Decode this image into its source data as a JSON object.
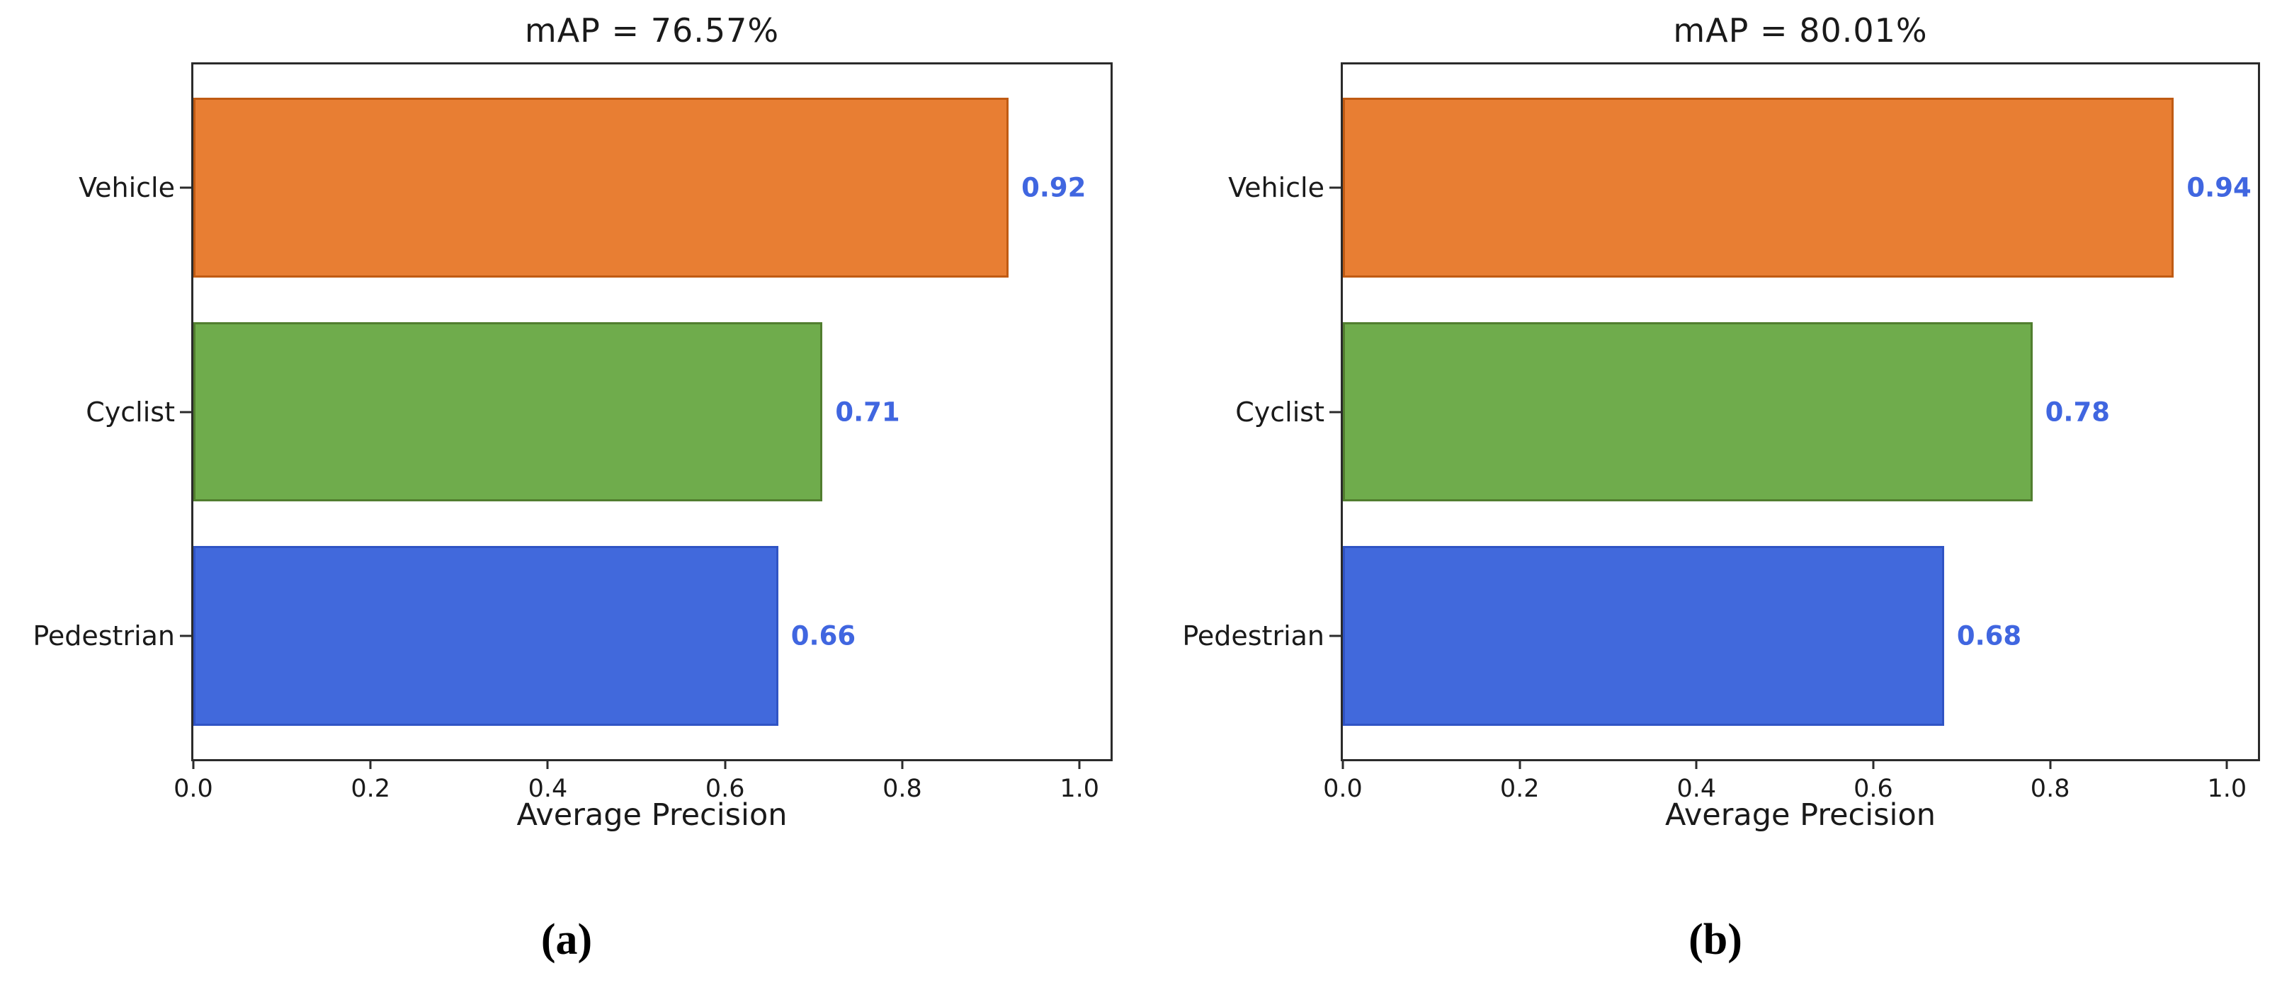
{
  "page": {
    "background": "#ffffff",
    "axis_color": "#2b2b2b"
  },
  "chart_data": [
    {
      "type": "bar",
      "orientation": "horizontal",
      "title": "mAP = 76.57%",
      "xlabel": "Average Precision",
      "categories": [
        "Vehicle",
        "Cyclist",
        "Pedestrian"
      ],
      "values": [
        0.92,
        0.71,
        0.66
      ],
      "value_labels": [
        "0.92",
        "0.71",
        "0.66"
      ],
      "xlim": [
        0,
        1.035
      ],
      "ylim_span": 3.1,
      "bar_height_frac": 0.8,
      "grid": false,
      "legend": "none",
      "x_ticks": [
        0.0,
        0.2,
        0.4,
        0.6,
        0.8,
        1.0
      ],
      "x_tick_labels": [
        "0.0",
        "0.2",
        "0.4",
        "0.6",
        "0.8",
        "1.0"
      ],
      "bar_colors": [
        "#E87E33",
        "#6FAC4C",
        "#4169DC"
      ],
      "bar_edge_colors": [
        "#C05B13",
        "#517E2F",
        "#3054C4"
      ],
      "value_label_color": "#4066E0",
      "caption": "(a)"
    },
    {
      "type": "bar",
      "orientation": "horizontal",
      "title": "mAP = 80.01%",
      "xlabel": "Average Precision",
      "categories": [
        "Vehicle",
        "Cyclist",
        "Pedestrian"
      ],
      "values": [
        0.94,
        0.78,
        0.68
      ],
      "value_labels": [
        "0.94",
        "0.78",
        "0.68"
      ],
      "xlim": [
        0,
        1.035
      ],
      "ylim_span": 3.1,
      "bar_height_frac": 0.8,
      "grid": false,
      "legend": "none",
      "x_ticks": [
        0.0,
        0.2,
        0.4,
        0.6,
        0.8,
        1.0
      ],
      "x_tick_labels": [
        "0.0",
        "0.2",
        "0.4",
        "0.6",
        "0.8",
        "1.0"
      ],
      "bar_colors": [
        "#E87E33",
        "#6FAC4C",
        "#4169DC"
      ],
      "bar_edge_colors": [
        "#C05B13",
        "#517E2F",
        "#3054C4"
      ],
      "value_label_color": "#4066E0",
      "caption": "(b)"
    }
  ]
}
